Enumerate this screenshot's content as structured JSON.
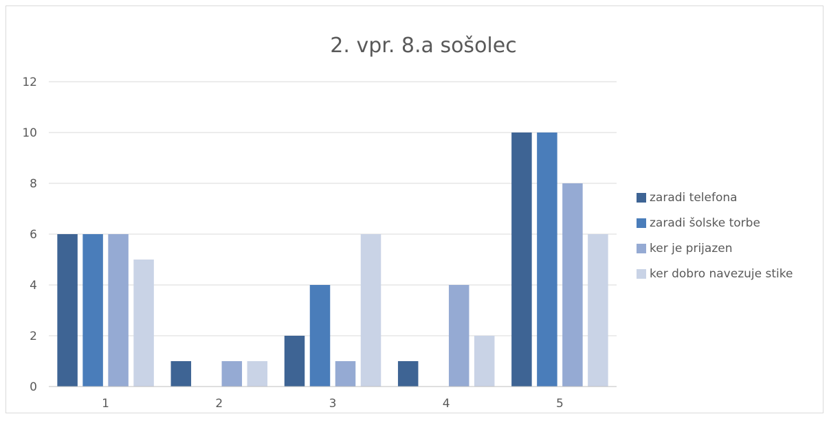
{
  "chart_data": {
    "type": "bar",
    "title": "2. vpr. 8.a sošolec",
    "categories": [
      "1",
      "2",
      "3",
      "4",
      "5"
    ],
    "series": [
      {
        "name": "zaradi telefona",
        "color": "#3e6494",
        "values": [
          6,
          1,
          2,
          1,
          10
        ]
      },
      {
        "name": "zaradi šolske torbe",
        "color": "#4a7dba",
        "values": [
          6,
          0,
          4,
          0,
          10
        ]
      },
      {
        "name": "ker je prijazen",
        "color": "#95aad3",
        "values": [
          6,
          1,
          1,
          4,
          8
        ]
      },
      {
        "name": "ker dobro navezuje stike",
        "color": "#c9d3e6",
        "values": [
          5,
          1,
          6,
          2,
          6
        ]
      }
    ],
    "ylim": [
      0,
      12
    ],
    "yticks": [
      "0",
      "2",
      "4",
      "6",
      "8",
      "10",
      "12"
    ],
    "grid": true,
    "legend": "right"
  }
}
